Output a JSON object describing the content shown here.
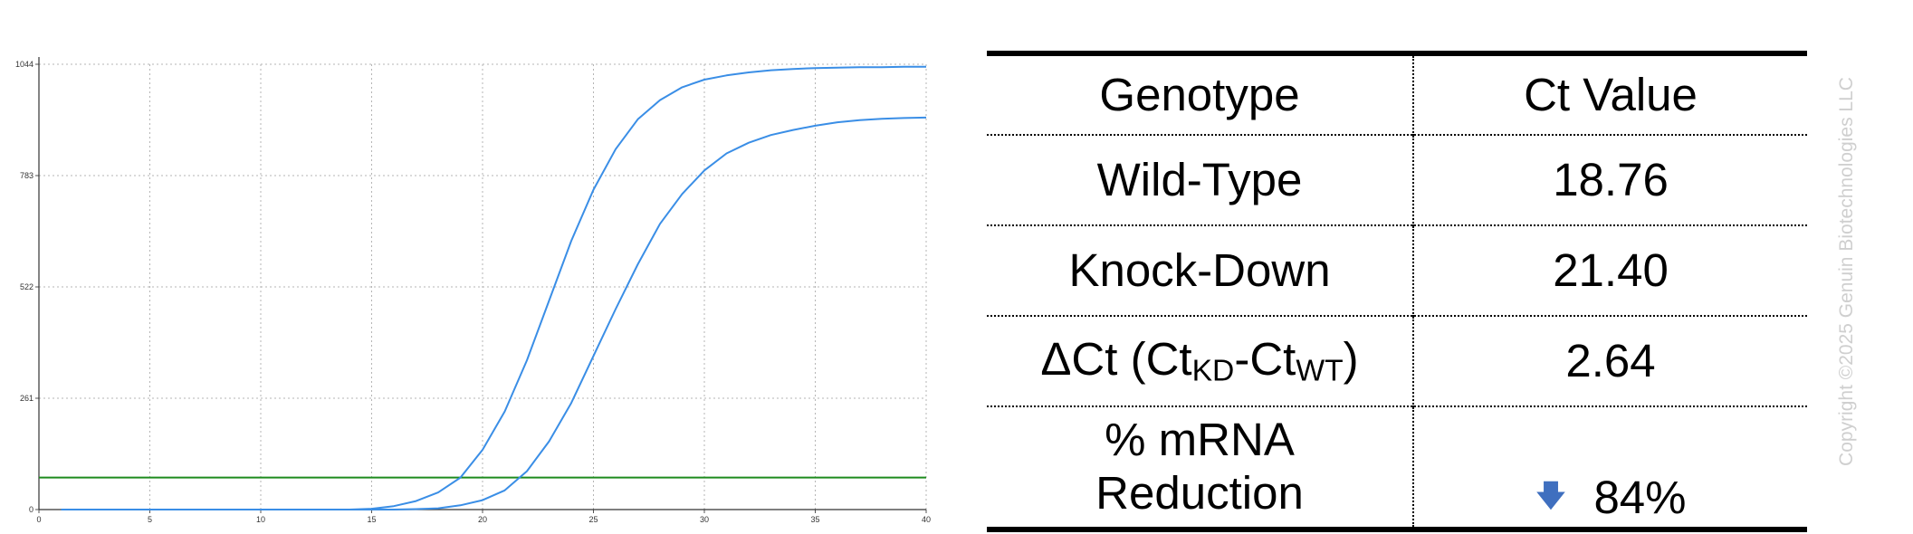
{
  "chart_data": {
    "type": "line",
    "title": "",
    "xlabel": "",
    "ylabel": "",
    "xlim": [
      0,
      40
    ],
    "ylim": [
      0,
      1044
    ],
    "x_ticks": [
      "0",
      "5",
      "10",
      "15",
      "20",
      "25",
      "30",
      "35",
      "40"
    ],
    "y_ticks": [
      "0",
      "261",
      "522",
      "783",
      "1044"
    ],
    "grid": true,
    "series": [
      {
        "color": "#3a8ee6",
        "x": [
          1,
          5,
          10,
          14,
          15,
          16,
          17,
          18,
          19,
          20,
          21,
          22,
          23,
          24,
          25,
          26,
          27,
          28,
          29,
          30,
          31,
          32,
          33,
          34,
          35,
          36,
          37,
          38,
          39,
          40
        ],
        "y": [
          0,
          0,
          0,
          0,
          2,
          8,
          20,
          40,
          75,
          140,
          230,
          350,
          490,
          630,
          750,
          845,
          915,
          960,
          990,
          1008,
          1018,
          1025,
          1030,
          1033,
          1035,
          1036,
          1037,
          1037,
          1038,
          1038
        ]
      },
      {
        "color": "#3a8ee6",
        "x": [
          1,
          5,
          10,
          15,
          16,
          17,
          18,
          19,
          20,
          21,
          22,
          23,
          24,
          25,
          26,
          27,
          28,
          29,
          30,
          31,
          32,
          33,
          34,
          35,
          36,
          37,
          38,
          39,
          40
        ],
        "y": [
          0,
          0,
          0,
          0,
          0,
          1,
          3,
          10,
          22,
          45,
          90,
          160,
          250,
          360,
          470,
          575,
          670,
          740,
          795,
          835,
          860,
          878,
          890,
          900,
          908,
          913,
          916,
          918,
          919
        ]
      }
    ],
    "threshold": {
      "y": 75,
      "color": "#1e8b1e"
    }
  },
  "table": {
    "header": {
      "genotype": "Genotype",
      "value": "Ct Value"
    },
    "wild_type": {
      "label": "Wild-Type",
      "value": "18.76"
    },
    "knock_down": {
      "label": "Knock-Down",
      "value": "21.40"
    },
    "delta": {
      "prefix": "ΔCt (Ct",
      "sub_kd": "KD",
      "mid": "-Ct",
      "sub_wt": "WT",
      "suffix": ")",
      "value": "2.64"
    },
    "reduction": {
      "label_line1": "% mRNA",
      "label_line2": "Reduction",
      "icon": "down-arrow-icon",
      "value": "84%",
      "icon_color": "#3f6fbf"
    }
  },
  "copyright": "Copyright ©2025 Genuin Biotechnologies LLC"
}
